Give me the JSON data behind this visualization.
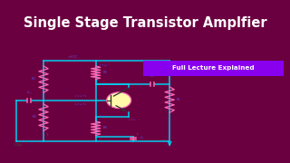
{
  "title": "Single Stage Transistor Amplfier",
  "title_bg": "#6B0040",
  "title_color": "#FFFFFF",
  "bg_color": "#FFFFFF",
  "wire_color": "#00CFEF",
  "comp_color": "#FF69B4",
  "label_color": "#5858FF",
  "badge_bg": "#8800EE",
  "badge_text": "Full Lecture Explained",
  "badge_color": "#FFFFFF",
  "signal_label": "SIGNAL",
  "transistor_fill": "#FFFAAA",
  "transistor_edge": "#FF69B4",
  "transistor_inner": "#333333",
  "ground_color": "#00CFEF",
  "arrow_color": "#00CFEF"
}
